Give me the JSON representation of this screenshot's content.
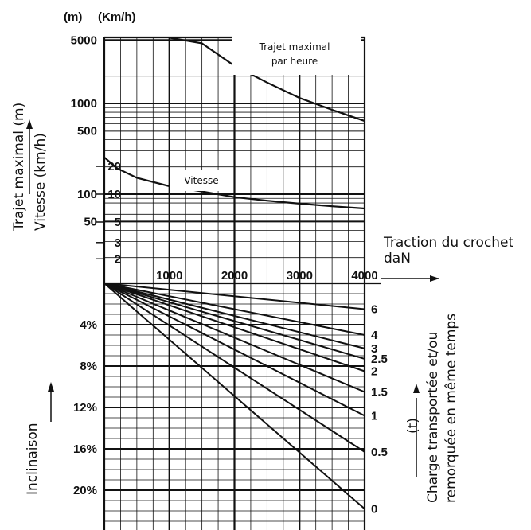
{
  "chart_data": [
    {
      "type": "line",
      "panel": "top",
      "y_scale": "log",
      "ylabel_distance": "Trajet maximal (m)",
      "ylabel_speed": "Vitesse (km/h)",
      "unit_distance": "(m)",
      "unit_speed": "(Km/h)",
      "xlabel": "Traction du crochet",
      "xunit": "daN",
      "x_ticks": [
        "1000",
        "2000",
        "3000",
        "4000"
      ],
      "y_ticks_distance": [
        "5000",
        "1000",
        "500",
        "100",
        "50"
      ],
      "y_ticks_speed": [
        "20",
        "10",
        "5",
        "3",
        "2"
      ],
      "grid": true,
      "series": [
        {
          "name": "Trajet maximal par heure",
          "points": [
            [
              1000,
              5300
            ],
            [
              1500,
              4600
            ],
            [
              2000,
              2600
            ],
            [
              2500,
              1700
            ],
            [
              3000,
              1150
            ],
            [
              3500,
              850
            ],
            [
              4000,
              640
            ]
          ]
        },
        {
          "name": "Vitesse",
          "points": [
            [
              0,
              25
            ],
            [
              200,
              19
            ],
            [
              500,
              15
            ],
            [
              1000,
              12.2
            ],
            [
              1500,
              10.7
            ],
            [
              2000,
              9.3
            ],
            [
              2500,
              8.5
            ],
            [
              3000,
              7.9
            ],
            [
              3500,
              7.4
            ],
            [
              4000,
              7.0
            ]
          ]
        }
      ],
      "annotations": [
        "Trajet maximal",
        "par heure",
        "Vitesse"
      ]
    },
    {
      "type": "line",
      "panel": "bottom",
      "xlabel": "Traction du crochet",
      "xunit": "daN",
      "ylabel": "Inclinaison",
      "y_ticks": [
        "4%",
        "8%",
        "12%",
        "16%",
        "20%"
      ],
      "y_range_percent": [
        0,
        23
      ],
      "right_label_line1": "Charge transportée et/ou",
      "right_label_line2": "remorquée en même temps",
      "right_unit": "(t)",
      "grid": true,
      "series": [
        {
          "name": "6",
          "end": [
            4000,
            2.5
          ]
        },
        {
          "name": "4",
          "end": [
            4000,
            5.0
          ]
        },
        {
          "name": "3",
          "end": [
            4000,
            6.3
          ]
        },
        {
          "name": "2.5",
          "end": [
            4000,
            7.3
          ]
        },
        {
          "name": "2",
          "end": [
            4000,
            8.5
          ]
        },
        {
          "name": "1.5",
          "end": [
            4000,
            10.5
          ]
        },
        {
          "name": "1",
          "end": [
            4000,
            12.8
          ]
        },
        {
          "name": "0.5",
          "end": [
            4000,
            16.3
          ]
        },
        {
          "name": "0",
          "end": [
            4000,
            21.8
          ]
        }
      ],
      "line_origin": [
        0,
        0
      ],
      "end_labels": [
        "6",
        "4",
        "3",
        "2.5",
        "2",
        "1.5",
        "1",
        "0.5",
        "0"
      ]
    }
  ]
}
